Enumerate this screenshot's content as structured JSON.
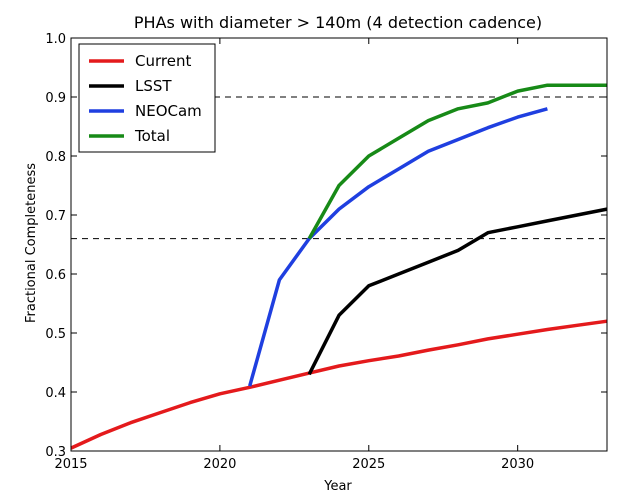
{
  "chart_data": {
    "type": "line",
    "title": "PHAs with diameter > 140m (4 detection cadence)",
    "xlabel": "Year",
    "ylabel": "Fractional Completeness",
    "xlim": [
      2015,
      2033
    ],
    "ylim": [
      0.3,
      1.0
    ],
    "xticks": [
      "2015",
      "2020",
      "2025",
      "2030"
    ],
    "yticks": [
      "0.3",
      "0.4",
      "0.5",
      "0.6",
      "0.7",
      "0.8",
      "0.9",
      "1.0"
    ],
    "grid": false,
    "legend_position": "top-left",
    "reference_lines": [
      0.9,
      0.66
    ],
    "series": [
      {
        "name": "Current",
        "color": "#e41a1c",
        "x": [
          2015,
          2016,
          2017,
          2018,
          2019,
          2020,
          2021,
          2022,
          2023,
          2024,
          2025,
          2026,
          2027,
          2028,
          2029,
          2030,
          2031,
          2032,
          2033
        ],
        "y": [
          0.305,
          0.328,
          0.348,
          0.365,
          0.382,
          0.397,
          0.408,
          0.42,
          0.432,
          0.444,
          0.453,
          0.461,
          0.471,
          0.48,
          0.49,
          0.498,
          0.506,
          0.513,
          0.52
        ]
      },
      {
        "name": "LSST",
        "color": "#000000",
        "x": [
          2023,
          2024,
          2025,
          2026,
          2027,
          2028,
          2029,
          2030,
          2031,
          2032,
          2033
        ],
        "y": [
          0.43,
          0.53,
          0.58,
          0.6,
          0.62,
          0.64,
          0.67,
          0.68,
          0.69,
          0.7,
          0.71
        ]
      },
      {
        "name": "NEOCam",
        "color": "#1f3fe0",
        "x": [
          2021,
          2022,
          2023,
          2024,
          2025,
          2026,
          2027,
          2028,
          2029,
          2030,
          2031
        ],
        "y": [
          0.41,
          0.59,
          0.66,
          0.71,
          0.748,
          0.778,
          0.808,
          0.828,
          0.848,
          0.866,
          0.88
        ]
      },
      {
        "name": "Total",
        "color": "#178a17",
        "x": [
          2023,
          2024,
          2025,
          2026,
          2027,
          2028,
          2029,
          2030,
          2031,
          2032,
          2033
        ],
        "y": [
          0.66,
          0.75,
          0.8,
          0.83,
          0.86,
          0.88,
          0.89,
          0.91,
          0.92,
          0.92,
          0.92
        ]
      }
    ]
  }
}
